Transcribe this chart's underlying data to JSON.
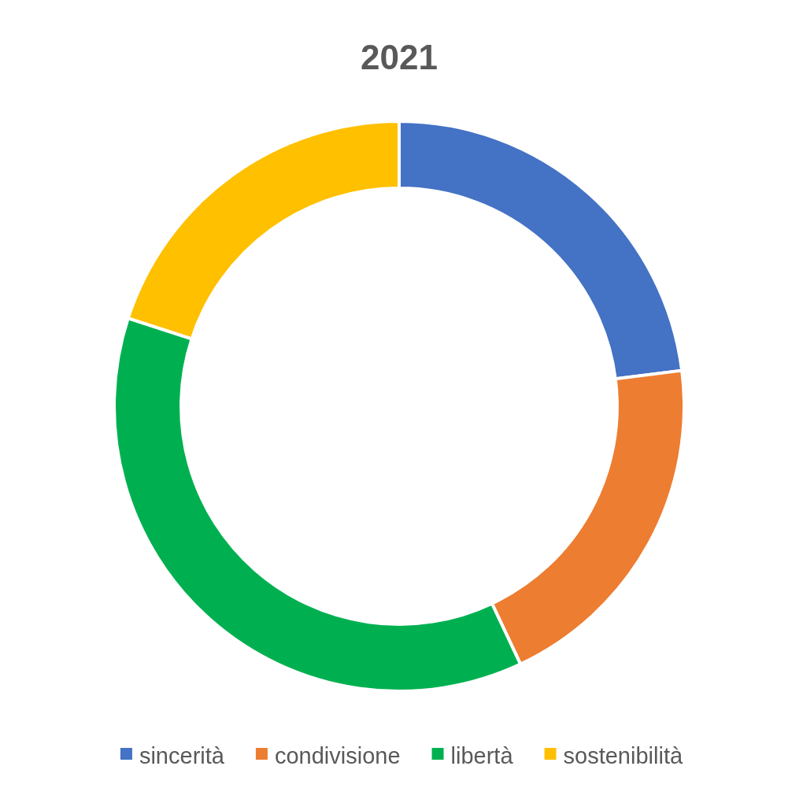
{
  "chart_data": {
    "type": "donut",
    "title": "2021",
    "categories": [
      "sincerità",
      "condivisione",
      "libertà",
      "sostenibilità"
    ],
    "values": [
      23,
      20,
      37,
      20
    ],
    "colors": [
      "#4472c4",
      "#ed7d31",
      "#00b050",
      "#ffc000"
    ],
    "legend": "bottom"
  }
}
